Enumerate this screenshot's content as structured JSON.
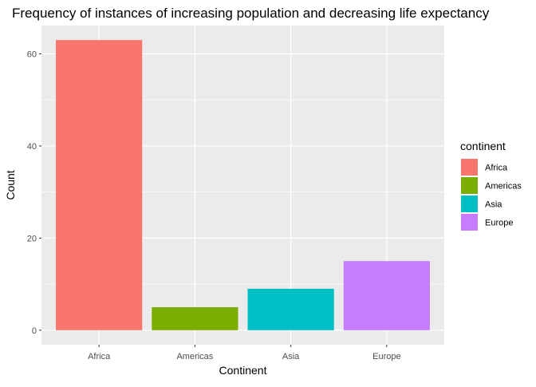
{
  "chart_data": {
    "type": "bar",
    "title": "Frequency of instances of increasing population and decreasing life expectancy",
    "xlabel": "Continent",
    "ylabel": "Count",
    "categories": [
      "Africa",
      "Americas",
      "Asia",
      "Europe"
    ],
    "values": [
      63,
      5,
      9,
      15
    ],
    "colors": [
      "#F8766D",
      "#7CAE00",
      "#00BFC4",
      "#C77CFF"
    ],
    "ylim": [
      -3.15,
      66.15
    ],
    "yticks": [
      0,
      20,
      40,
      60
    ],
    "grid": true,
    "background": "#EBEBEB",
    "gridline_color": "#FFFFFF",
    "legend": {
      "title": "continent",
      "placement": "right",
      "entries": [
        "Africa",
        "Americas",
        "Asia",
        "Europe"
      ]
    }
  }
}
